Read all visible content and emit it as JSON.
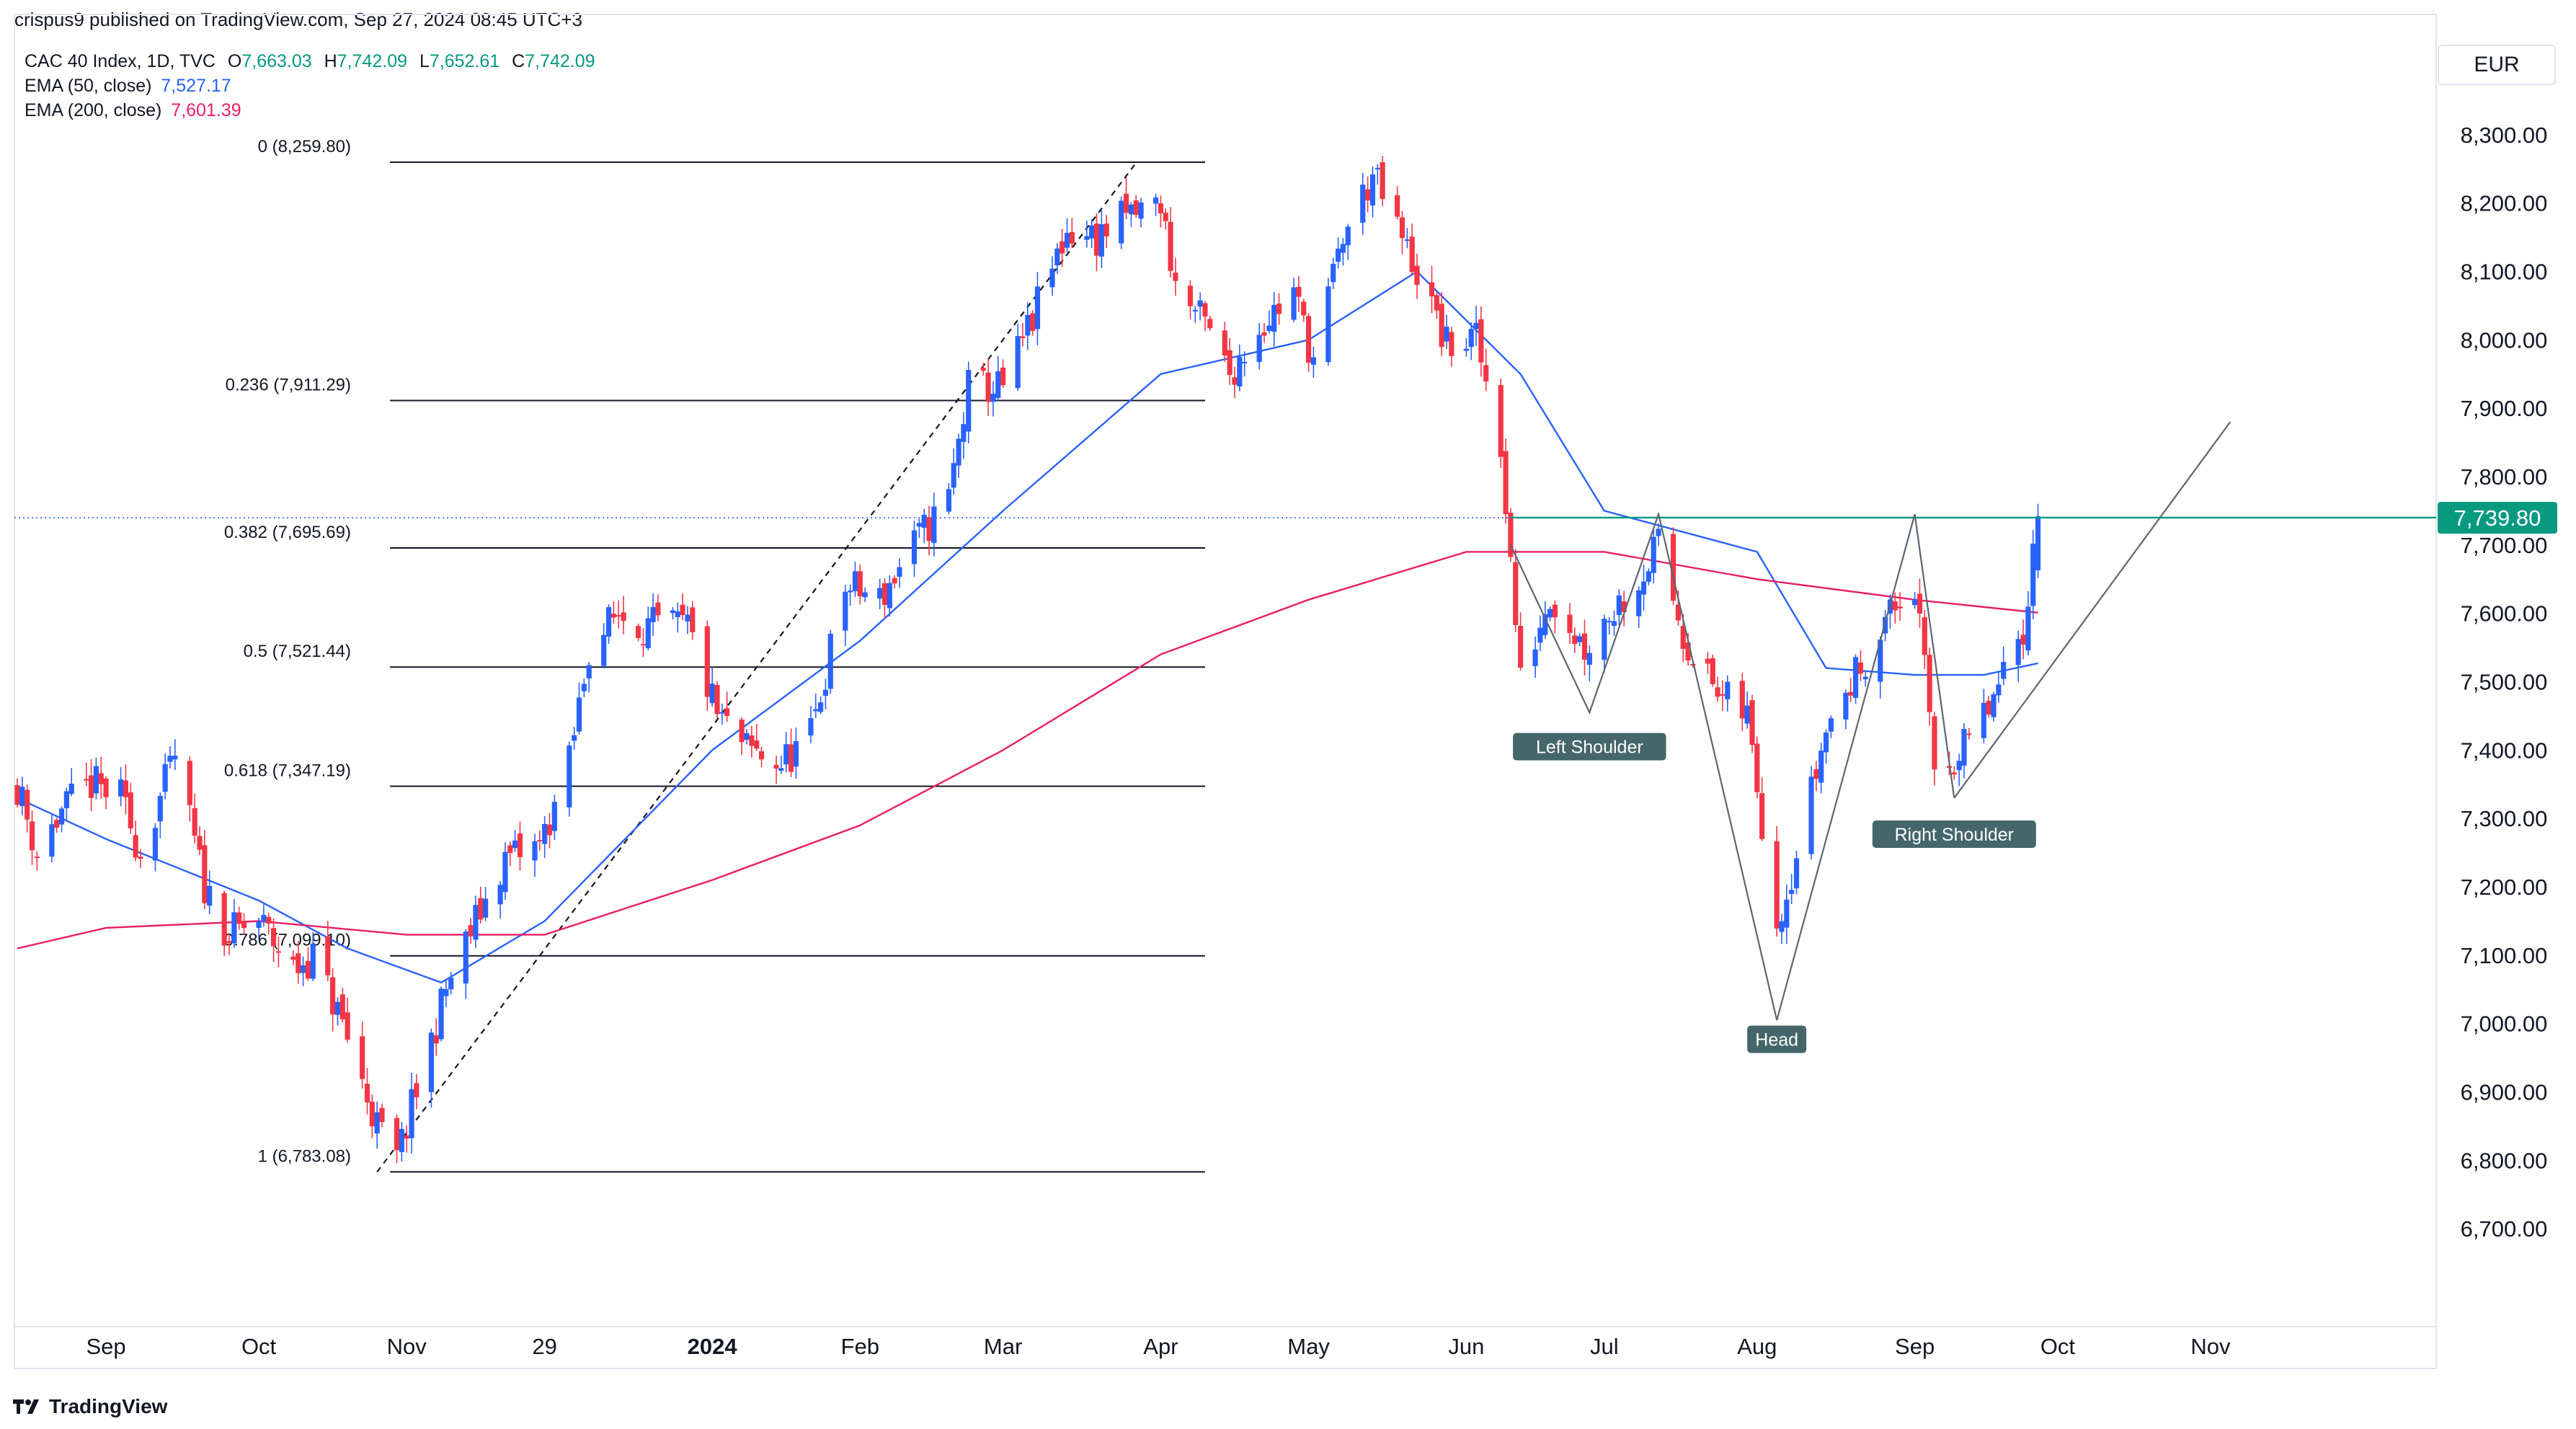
{
  "header": {
    "publisher_line": "crispus9 published on TradingView.com, Sep 27, 2024 08:45 UTC+3"
  },
  "legend": {
    "symbol": "CAC 40 Index, 1D, TVC",
    "open": "7,663.03",
    "high": "7,742.09",
    "low": "7,652.61",
    "close": "7,742.09",
    "ema50_label": "EMA (50, close)",
    "ema50_value": "7,527.17",
    "ema200_label": "EMA (200, close)",
    "ema200_value": "7,601.39"
  },
  "currency": "EUR",
  "footer": {
    "brand": "TradingView"
  },
  "colors": {
    "up": "#2962ff",
    "down": "#f23645",
    "ema50": "#2962ff",
    "ema200": "#e91e63",
    "price_line": "#089981",
    "label_bg": "#45666a"
  },
  "chart_data": {
    "type": "candlestick",
    "ylim": [
      6580,
      8360
    ],
    "y_ticks": [
      6700,
      6800,
      6900,
      7000,
      7100,
      7200,
      7300,
      7400,
      7500,
      7600,
      7700,
      7800,
      7900,
      8000,
      8100,
      8200,
      8300
    ],
    "y_tick_labels": [
      "6,700.00",
      "6,800.00",
      "6,900.00",
      "7,000.00",
      "7,100.00",
      "7,200.00",
      "7,300.00",
      "7,400.00",
      "7,500.00",
      "7,600.00",
      "7,700.00",
      "7,800.00",
      "7,900.00",
      "8,000.00",
      "8,100.00",
      "8,200.00",
      "8,300.00"
    ],
    "x_axis_labels": [
      {
        "label": "Sep",
        "date": "2023-09-01"
      },
      {
        "label": "Oct",
        "date": "2023-10-02"
      },
      {
        "label": "Nov",
        "date": "2023-11-01"
      },
      {
        "label": "29",
        "date": "2023-11-29"
      },
      {
        "label": "2024",
        "date": "2024-01-02",
        "bold": true
      },
      {
        "label": "Feb",
        "date": "2024-02-01"
      },
      {
        "label": "Mar",
        "date": "2024-03-01"
      },
      {
        "label": "Apr",
        "date": "2024-04-02"
      },
      {
        "label": "May",
        "date": "2024-05-02"
      },
      {
        "label": "Jun",
        "date": "2024-06-03"
      },
      {
        "label": "Jul",
        "date": "2024-07-01"
      },
      {
        "label": "Aug",
        "date": "2024-08-01"
      },
      {
        "label": "Sep",
        "date": "2024-09-02"
      },
      {
        "label": "Oct",
        "date": "2024-10-01"
      },
      {
        "label": "Nov",
        "date": "2024-11-01"
      }
    ],
    "last_price": 7739.8,
    "last_price_label": "7,739.80",
    "price_path": [
      [
        "2023-08-14",
        7350
      ],
      [
        "2023-08-18",
        7250
      ],
      [
        "2023-08-23",
        7310
      ],
      [
        "2023-08-29",
        7350
      ],
      [
        "2023-09-04",
        7330
      ],
      [
        "2023-09-08",
        7250
      ],
      [
        "2023-09-15",
        7390
      ],
      [
        "2023-09-21",
        7200
      ],
      [
        "2023-09-26",
        7130
      ],
      [
        "2023-10-02",
        7150
      ],
      [
        "2023-10-09",
        7080
      ],
      [
        "2023-10-13",
        7100
      ],
      [
        "2023-10-19",
        7000
      ],
      [
        "2023-10-26",
        6850
      ],
      [
        "2023-10-30",
        6800
      ],
      [
        "2023-11-03",
        6900
      ],
      [
        "2023-11-09",
        7050
      ],
      [
        "2023-11-15",
        7150
      ],
      [
        "2023-11-21",
        7240
      ],
      [
        "2023-11-28",
        7260
      ],
      [
        "2023-12-04",
        7380
      ],
      [
        "2023-12-08",
        7550
      ],
      [
        "2023-12-14",
        7600
      ],
      [
        "2023-12-20",
        7580
      ],
      [
        "2023-12-28",
        7580
      ],
      [
        "2024-01-03",
        7450
      ],
      [
        "2024-01-09",
        7400
      ],
      [
        "2024-01-16",
        7380
      ],
      [
        "2024-01-22",
        7420
      ],
      [
        "2024-01-29",
        7640
      ],
      [
        "2024-02-05",
        7620
      ],
      [
        "2024-02-12",
        7700
      ],
      [
        "2024-02-19",
        7770
      ],
      [
        "2024-02-23",
        7930
      ],
      [
        "2024-03-01",
        7930
      ],
      [
        "2024-03-07",
        8030
      ],
      [
        "2024-03-14",
        8160
      ],
      [
        "2024-03-20",
        8150
      ],
      [
        "2024-03-26",
        8180
      ],
      [
        "2024-04-02",
        8200
      ],
      [
        "2024-04-05",
        8080
      ],
      [
        "2024-04-11",
        8020
      ],
      [
        "2024-04-16",
        7950
      ],
      [
        "2024-04-22",
        8020
      ],
      [
        "2024-04-29",
        8070
      ],
      [
        "2024-05-03",
        7970
      ],
      [
        "2024-05-09",
        8150
      ],
      [
        "2024-05-15",
        8240
      ],
      [
        "2024-05-20",
        8160
      ],
      [
        "2024-05-24",
        8100
      ],
      [
        "2024-05-30",
        7990
      ],
      [
        "2024-06-05",
        8000
      ],
      [
        "2024-06-10",
        7850
      ],
      [
        "2024-06-14",
        7500
      ],
      [
        "2024-06-20",
        7630
      ],
      [
        "2024-06-27",
        7550
      ],
      [
        "2024-07-02",
        7600
      ],
      [
        "2024-07-08",
        7650
      ],
      [
        "2024-07-12",
        7700
      ],
      [
        "2024-07-17",
        7570
      ],
      [
        "2024-07-24",
        7480
      ],
      [
        "2024-07-30",
        7450
      ],
      [
        "2024-08-05",
        7150
      ],
      [
        "2024-08-09",
        7250
      ],
      [
        "2024-08-15",
        7430
      ],
      [
        "2024-08-21",
        7510
      ],
      [
        "2024-08-27",
        7590
      ],
      [
        "2024-09-02",
        7640
      ],
      [
        "2024-09-06",
        7380
      ],
      [
        "2024-09-11",
        7390
      ],
      [
        "2024-09-17",
        7460
      ],
      [
        "2024-09-20",
        7500
      ],
      [
        "2024-09-24",
        7580
      ],
      [
        "2024-09-27",
        7742
      ]
    ],
    "series": [
      {
        "name": "EMA (50, close)",
        "points": [
          [
            "2023-08-14",
            7330
          ],
          [
            "2023-09-01",
            7270
          ],
          [
            "2023-10-02",
            7180
          ],
          [
            "2023-10-20",
            7110
          ],
          [
            "2023-11-08",
            7060
          ],
          [
            "2023-11-29",
            7150
          ],
          [
            "2024-01-02",
            7400
          ],
          [
            "2024-02-01",
            7560
          ],
          [
            "2024-03-01",
            7750
          ],
          [
            "2024-04-02",
            7950
          ],
          [
            "2024-05-02",
            8000
          ],
          [
            "2024-05-24",
            8100
          ],
          [
            "2024-06-14",
            7950
          ],
          [
            "2024-07-01",
            7750
          ],
          [
            "2024-08-01",
            7690
          ],
          [
            "2024-08-15",
            7520
          ],
          [
            "2024-09-02",
            7510
          ],
          [
            "2024-09-16",
            7510
          ],
          [
            "2024-09-27",
            7527
          ]
        ]
      },
      {
        "name": "EMA (200, close)",
        "points": [
          [
            "2023-08-14",
            7110
          ],
          [
            "2023-09-01",
            7140
          ],
          [
            "2023-10-02",
            7150
          ],
          [
            "2023-11-01",
            7130
          ],
          [
            "2023-11-29",
            7130
          ],
          [
            "2024-01-02",
            7210
          ],
          [
            "2024-02-01",
            7290
          ],
          [
            "2024-03-01",
            7400
          ],
          [
            "2024-04-02",
            7540
          ],
          [
            "2024-05-02",
            7620
          ],
          [
            "2024-06-03",
            7690
          ],
          [
            "2024-07-01",
            7690
          ],
          [
            "2024-08-01",
            7650
          ],
          [
            "2024-09-02",
            7620
          ],
          [
            "2024-09-27",
            7601
          ]
        ]
      }
    ],
    "fibonacci": {
      "from_date": "2023-10-26",
      "to_date": "2024-03-28",
      "levels": [
        {
          "label": "0 (8,259.80)",
          "price": 8259.8
        },
        {
          "label": "0.236 (7,911.29)",
          "price": 7911.29
        },
        {
          "label": "0.382 (7,695.69)",
          "price": 7695.69
        },
        {
          "label": "0.5 (7,521.44)",
          "price": 7521.44
        },
        {
          "label": "0.618 (7,347.19)",
          "price": 7347.19
        },
        {
          "label": "0.786 (7,099.10)",
          "price": 7099.1
        },
        {
          "label": "1 (6,783.08)",
          "price": 6783.08
        }
      ]
    },
    "fib_trend_line": [
      [
        "2023-10-26",
        6783
      ],
      [
        "2024-03-28",
        8259
      ]
    ],
    "neckline": {
      "from_date": "2024-06-12",
      "to_date": "2024-10-31",
      "price": 7740
    },
    "pattern_lines": [
      [
        [
          "2024-06-12",
          7700
        ],
        [
          "2024-06-28",
          7455
        ],
        [
          "2024-07-12",
          7745
        ],
        [
          "2024-08-05",
          7005
        ],
        [
          "2024-09-02",
          7745
        ],
        [
          "2024-09-10",
          7330
        ]
      ],
      [
        [
          "2024-09-10",
          7330
        ],
        [
          "2024-11-05",
          7880
        ]
      ]
    ],
    "annotations": [
      {
        "text": "Left Shoulder",
        "date": "2024-06-28",
        "price": 7405
      },
      {
        "text": "Head",
        "date": "2024-08-05",
        "price": 6977
      },
      {
        "text": "Right Shoulder",
        "date": "2024-09-10",
        "price": 7277
      }
    ]
  }
}
